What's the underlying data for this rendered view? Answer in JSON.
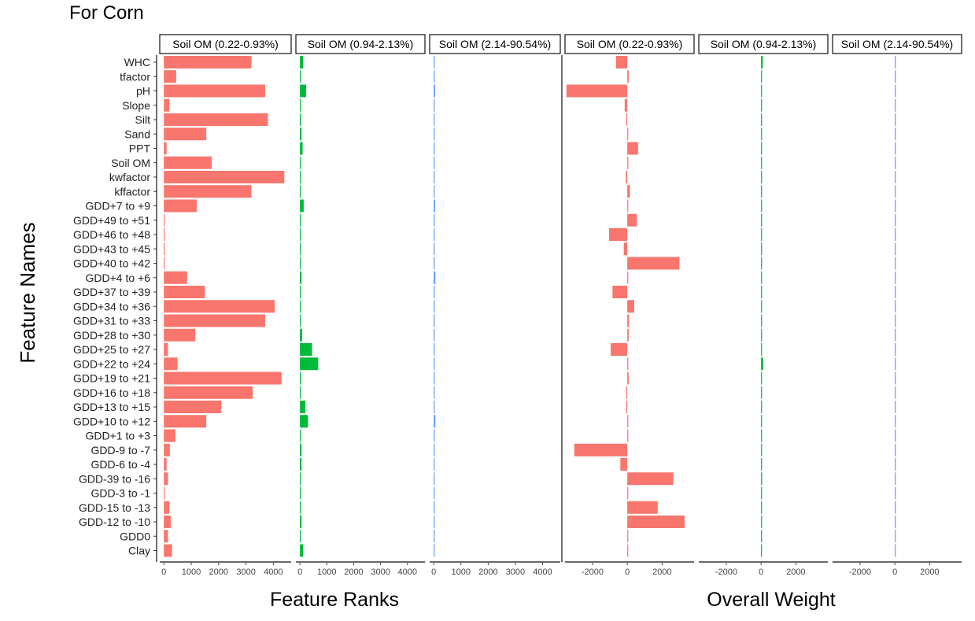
{
  "chart_data": {
    "type": "bar",
    "orientation": "horizontal",
    "title": "For Corn",
    "ylabel": "Feature Names",
    "features": [
      "WHC",
      "tfactor",
      "pH",
      "Slope",
      "Silt",
      "Sand",
      "PPT",
      "Soil OM",
      "kwfactor",
      "kffactor",
      "GDD+7 to +9",
      "GDD+49 to +51",
      "GDD+46 to +48",
      "GDD+43 to +45",
      "GDD+40 to +42",
      "GDD+4 to +6",
      "GDD+37 to +39",
      "GDD+34 to +36",
      "GDD+31 to +33",
      "GDD+28 to +30",
      "GDD+25 to +27",
      "GDD+22 to +24",
      "GDD+19 to +21",
      "GDD+16 to +18",
      "GDD+13 to +15",
      "GDD+10 to +12",
      "GDD+1 to +3",
      "GDD-9 to -7",
      "GDD-6 to -4",
      "GDD-39 to -16",
      "GDD-3 to -1",
      "GDD-15 to -13",
      "GDD-12 to -10",
      "GDD0",
      "Clay"
    ],
    "panels": [
      {
        "group": "ranks",
        "strip": "Soil OM (0.22-0.93%)",
        "color": "#f8766d",
        "values": [
          3200,
          450,
          3700,
          200,
          3800,
          1550,
          100,
          1750,
          4400,
          3200,
          1200,
          0,
          30,
          30,
          30,
          850,
          1500,
          4050,
          3700,
          1150,
          150,
          500,
          4300,
          3250,
          2100,
          1550,
          420,
          220,
          100,
          150,
          0,
          200,
          250,
          150,
          300
        ]
      },
      {
        "group": "ranks",
        "strip": "Soil OM (0.94-2.13%)",
        "color": "#00ba38",
        "values": [
          120,
          10,
          230,
          10,
          40,
          60,
          100,
          10,
          30,
          10,
          140,
          0,
          0,
          0,
          0,
          60,
          0,
          30,
          0,
          80,
          450,
          680,
          40,
          30,
          200,
          300,
          10,
          60,
          60,
          30,
          0,
          30,
          60,
          30,
          120
        ]
      },
      {
        "group": "ranks",
        "strip": "Soil OM (2.14-90.54%)",
        "color": "#619cff",
        "values": [
          0,
          0,
          50,
          20,
          0,
          10,
          30,
          0,
          0,
          0,
          50,
          0,
          0,
          0,
          30,
          60,
          30,
          30,
          30,
          30,
          30,
          30,
          20,
          0,
          30,
          60,
          10,
          20,
          20,
          0,
          30,
          20,
          20,
          30,
          20
        ]
      },
      {
        "group": "weight",
        "strip": "Soil OM (0.22-0.93%)",
        "color": "#f8766d",
        "values": [
          -650,
          80,
          -3500,
          -150,
          -60,
          30,
          620,
          60,
          -80,
          150,
          30,
          550,
          -1050,
          -200,
          3000,
          30,
          -850,
          400,
          100,
          80,
          -950,
          40,
          80,
          -60,
          -60,
          20,
          0,
          -3050,
          -400,
          2650,
          0,
          1750,
          3300,
          40,
          30
        ]
      },
      {
        "group": "weight",
        "strip": "Soil OM (0.94-2.13%)",
        "color": "#00ba38",
        "values": [
          100,
          0,
          30,
          0,
          0,
          0,
          30,
          0,
          0,
          0,
          30,
          0,
          0,
          0,
          30,
          30,
          30,
          0,
          30,
          0,
          20,
          120,
          20,
          0,
          0,
          0,
          0,
          30,
          30,
          60,
          0,
          0,
          20,
          0,
          0
        ]
      },
      {
        "group": "weight",
        "strip": "Soil OM (2.14-90.54%)",
        "color": "#619cff",
        "values": [
          0,
          0,
          30,
          0,
          0,
          0,
          20,
          0,
          0,
          0,
          30,
          0,
          0,
          0,
          0,
          0,
          0,
          0,
          0,
          0,
          0,
          0,
          0,
          0,
          0,
          0,
          0,
          0,
          0,
          0,
          0,
          0,
          0,
          20,
          0
        ]
      }
    ],
    "groups": {
      "ranks": {
        "label": "Feature Ranks",
        "xlim": [
          -150,
          4650
        ],
        "ticks": [
          0,
          1000,
          2000,
          3000,
          4000
        ]
      },
      "weight": {
        "label": "Overall Weight",
        "xlim": [
          -3580,
          3840
        ],
        "ticks": [
          -2000,
          0,
          2000
        ]
      }
    },
    "grid": false
  }
}
